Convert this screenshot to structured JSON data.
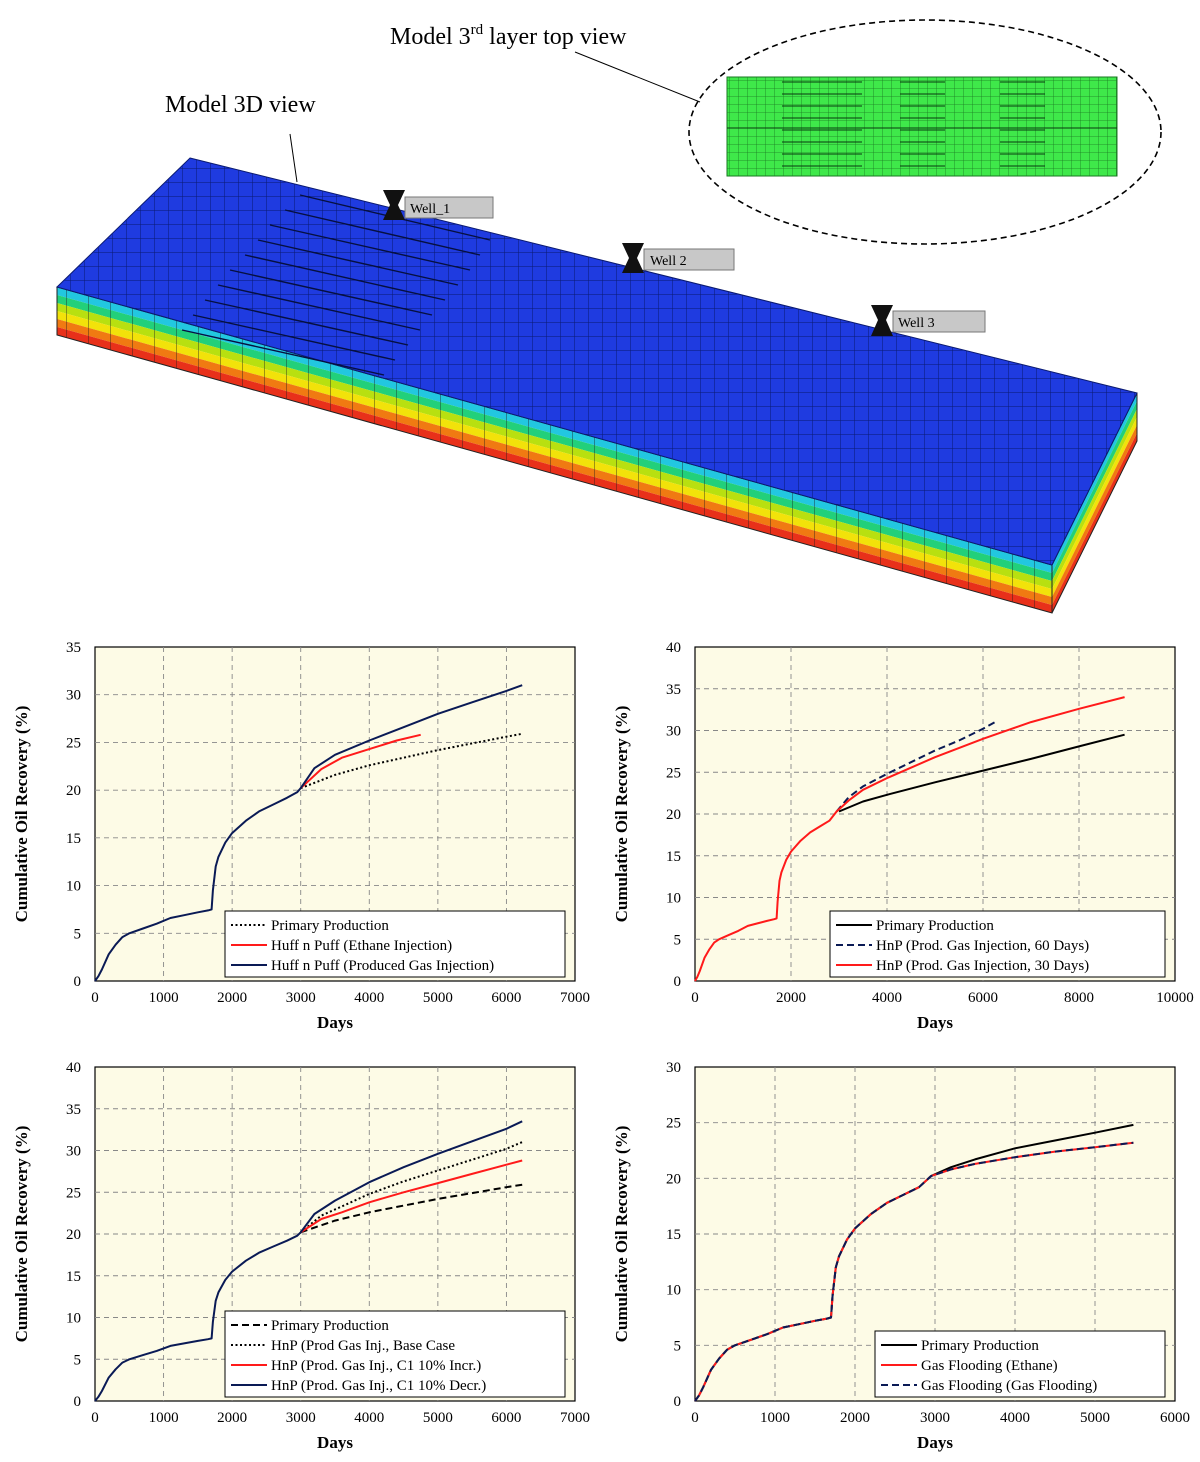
{
  "model": {
    "title_3d": "Model 3D view",
    "title_top_prefix": "Model 3",
    "title_top_sup": "rd",
    "title_top_suffix": " layer top view",
    "wells": [
      "Well_1",
      "Well 2",
      "Well 3"
    ],
    "colors": {
      "top": "#1f3be0",
      "layers": [
        "#22c7e0",
        "#22d07a",
        "#b8e010",
        "#f2e20a",
        "#f07a12",
        "#e8301a"
      ],
      "top_view": "#3fe84a"
    }
  },
  "chart_data": [
    {
      "type": "line",
      "xlabel": "Days",
      "ylabel": "Cumulative Oil Recovery (%)",
      "xlim": [
        0,
        7000
      ],
      "ylim": [
        0,
        35
      ],
      "xticks": [
        0,
        1000,
        2000,
        3000,
        4000,
        5000,
        6000,
        7000
      ],
      "yticks": [
        0,
        5,
        10,
        15,
        20,
        25,
        30,
        35
      ],
      "grid": true,
      "legend_position": "bottom-right",
      "series": [
        {
          "name": "Primary Production",
          "color": "#000000",
          "style": "dotted",
          "x": [
            3000,
            3500,
            4000,
            4500,
            5000,
            5500,
            6000,
            6230
          ],
          "y": [
            20.2,
            21.6,
            22.6,
            23.4,
            24.2,
            24.9,
            25.6,
            25.9
          ]
        },
        {
          "name": "Huff n Puff (Ethane Injection)",
          "color": "#ff1a1a",
          "style": "solid",
          "x": [
            3000,
            3300,
            3600,
            4000,
            4400,
            4750
          ],
          "y": [
            20.2,
            22.2,
            23.4,
            24.3,
            25.2,
            25.8
          ]
        },
        {
          "name": "Huff n Puff (Produced Gas Injection)",
          "color": "#0a1a55",
          "style": "solid",
          "x": [
            0,
            50,
            100,
            200,
            300,
            400,
            500,
            700,
            900,
            1100,
            1300,
            1500,
            1650,
            1700,
            1720,
            1760,
            1800,
            1900,
            2000,
            2200,
            2400,
            2600,
            2800,
            2950,
            3000,
            3200,
            3500,
            4000,
            4500,
            5000,
            5500,
            6000,
            6230
          ],
          "y": [
            0,
            0.5,
            1.2,
            2.8,
            3.8,
            4.6,
            5.0,
            5.5,
            6.0,
            6.6,
            6.9,
            7.2,
            7.4,
            7.5,
            9.5,
            12.0,
            13.0,
            14.5,
            15.5,
            16.8,
            17.8,
            18.5,
            19.2,
            19.8,
            20.2,
            22.3,
            23.7,
            25.2,
            26.6,
            28.0,
            29.2,
            30.4,
            31.0
          ]
        }
      ]
    },
    {
      "type": "line",
      "xlabel": "Days",
      "ylabel": "Cumulative Oil Recovery (%)",
      "xlim": [
        0,
        10000
      ],
      "ylim": [
        0,
        40
      ],
      "xticks": [
        0,
        2000,
        4000,
        6000,
        8000,
        10000
      ],
      "yticks": [
        0,
        5,
        10,
        15,
        20,
        25,
        30,
        35,
        40
      ],
      "grid": true,
      "legend_position": "bottom-right",
      "series": [
        {
          "name": "Primary Production",
          "color": "#000000",
          "style": "solid",
          "x": [
            3000,
            3500,
            4000,
            5000,
            6000,
            7000,
            8000,
            8950
          ],
          "y": [
            20.3,
            21.5,
            22.3,
            23.8,
            25.2,
            26.6,
            28.1,
            29.5
          ]
        },
        {
          "name": "HnP (Prod. Gas Injection, 60 Days)",
          "color": "#0a1a55",
          "style": "dashed",
          "x": [
            2950,
            3200,
            3500,
            4000,
            4500,
            5000,
            5500,
            6000,
            6250
          ],
          "y": [
            20.3,
            22.0,
            23.3,
            24.8,
            26.2,
            27.6,
            28.8,
            30.2,
            31.0
          ]
        },
        {
          "name": "HnP (Prod. Gas Injection, 30 Days)",
          "color": "#ff1a1a",
          "style": "solid",
          "x": [
            0,
            50,
            100,
            200,
            300,
            400,
            500,
            700,
            900,
            1100,
            1300,
            1500,
            1650,
            1700,
            1720,
            1760,
            1800,
            1900,
            2000,
            2200,
            2400,
            2600,
            2800,
            2950,
            3200,
            3500,
            4000,
            5000,
            6000,
            7000,
            8000,
            8950
          ],
          "y": [
            0,
            0.5,
            1.2,
            2.8,
            3.8,
            4.6,
            5.0,
            5.5,
            6.0,
            6.6,
            6.9,
            7.2,
            7.4,
            7.5,
            9.5,
            12.0,
            13.0,
            14.5,
            15.5,
            16.8,
            17.8,
            18.5,
            19.2,
            20.3,
            21.6,
            22.9,
            24.3,
            26.8,
            29.0,
            31.0,
            32.6,
            34.0
          ]
        }
      ]
    },
    {
      "type": "line",
      "xlabel": "Days",
      "ylabel": "Cumulative Oil Recovery (%)",
      "xlim": [
        0,
        7000
      ],
      "ylim": [
        0,
        40
      ],
      "xticks": [
        0,
        1000,
        2000,
        3000,
        4000,
        5000,
        6000,
        7000
      ],
      "yticks": [
        0,
        5,
        10,
        15,
        20,
        25,
        30,
        35,
        40
      ],
      "grid": true,
      "legend_position": "bottom-right",
      "series": [
        {
          "name": "Primary Production",
          "color": "#000000",
          "style": "dashed",
          "x": [
            3000,
            3500,
            4000,
            4500,
            5000,
            5500,
            6000,
            6230
          ],
          "y": [
            20.2,
            21.6,
            22.6,
            23.4,
            24.2,
            24.9,
            25.6,
            25.9
          ]
        },
        {
          "name": "HnP (Prod Gas Inj., Base Case",
          "color": "#000000",
          "style": "dotted",
          "x": [
            3000,
            3300,
            3600,
            4000,
            4500,
            5000,
            5500,
            6000,
            6230
          ],
          "y": [
            20.2,
            22.2,
            23.3,
            24.8,
            26.3,
            27.6,
            28.9,
            30.2,
            31.0
          ]
        },
        {
          "name": "HnP (Prod. Gas Inj., C1 10% Incr.)",
          "color": "#ff1a1a",
          "style": "solid",
          "x": [
            3000,
            3300,
            3600,
            4000,
            4500,
            5000,
            5500,
            6000,
            6230
          ],
          "y": [
            20.2,
            21.8,
            22.6,
            23.8,
            25.0,
            26.1,
            27.2,
            28.3,
            28.8
          ]
        },
        {
          "name": "HnP (Prod. Gas Inj., C1 10% Decr.)",
          "color": "#0a1a55",
          "style": "solid",
          "x": [
            0,
            50,
            100,
            200,
            300,
            400,
            500,
            700,
            900,
            1100,
            1300,
            1500,
            1650,
            1700,
            1720,
            1760,
            1800,
            1900,
            2000,
            2200,
            2400,
            2600,
            2800,
            2950,
            3000,
            3200,
            3500,
            4000,
            4500,
            5000,
            5500,
            6000,
            6230
          ],
          "y": [
            0,
            0.5,
            1.2,
            2.8,
            3.8,
            4.6,
            5.0,
            5.5,
            6.0,
            6.6,
            6.9,
            7.2,
            7.4,
            7.5,
            9.5,
            12.0,
            13.0,
            14.5,
            15.5,
            16.8,
            17.8,
            18.5,
            19.2,
            19.8,
            20.2,
            22.4,
            24.0,
            26.2,
            28.0,
            29.6,
            31.1,
            32.6,
            33.5
          ]
        }
      ]
    },
    {
      "type": "line",
      "xlabel": "Days",
      "ylabel": "Cumulative Oil Recovery (%)",
      "xlim": [
        0,
        6000
      ],
      "ylim": [
        0,
        30
      ],
      "xticks": [
        0,
        1000,
        2000,
        3000,
        4000,
        5000,
        6000
      ],
      "yticks": [
        0,
        5,
        10,
        15,
        20,
        25,
        30
      ],
      "grid": true,
      "legend_position": "bottom-right",
      "series": [
        {
          "name": "Primary Production",
          "color": "#000000",
          "style": "solid",
          "x": [
            0,
            50,
            100,
            200,
            300,
            400,
            500,
            700,
            900,
            1100,
            1300,
            1500,
            1650,
            1700,
            1720,
            1760,
            1800,
            1900,
            2000,
            2200,
            2400,
            2600,
            2800,
            2950,
            3200,
            3500,
            4000,
            4500,
            5000,
            5480
          ],
          "y": [
            0,
            0.5,
            1.2,
            2.8,
            3.8,
            4.6,
            5.0,
            5.5,
            6.0,
            6.6,
            6.9,
            7.2,
            7.4,
            7.5,
            9.5,
            12.0,
            13.0,
            14.5,
            15.5,
            16.8,
            17.8,
            18.5,
            19.2,
            20.2,
            21.0,
            21.7,
            22.7,
            23.4,
            24.1,
            24.8
          ]
        },
        {
          "name": "Gas Flooding (Ethane)",
          "color": "#ff1a1a",
          "style": "solid",
          "x": [
            0,
            50,
            100,
            200,
            300,
            400,
            500,
            700,
            900,
            1100,
            1300,
            1500,
            1650,
            1700,
            1720,
            1760,
            1800,
            1900,
            2000,
            2200,
            2400,
            2600,
            2800,
            2950,
            3200,
            3500,
            4000,
            4500,
            5000,
            5480
          ],
          "y": [
            0,
            0.5,
            1.2,
            2.8,
            3.8,
            4.6,
            5.0,
            5.5,
            6.0,
            6.6,
            6.9,
            7.2,
            7.4,
            7.5,
            9.5,
            12.0,
            13.0,
            14.5,
            15.5,
            16.8,
            17.8,
            18.5,
            19.2,
            20.2,
            20.8,
            21.3,
            21.9,
            22.4,
            22.8,
            23.2
          ]
        },
        {
          "name": "Gas Flooding (Gas Flooding)",
          "color": "#0a1a55",
          "style": "dashed",
          "x": [
            0,
            50,
            100,
            200,
            300,
            400,
            500,
            700,
            900,
            1100,
            1300,
            1500,
            1650,
            1700,
            1720,
            1760,
            1800,
            1900,
            2000,
            2200,
            2400,
            2600,
            2800,
            2950,
            3200,
            3500,
            4000,
            4500,
            5000,
            5480
          ],
          "y": [
            0,
            0.5,
            1.2,
            2.8,
            3.8,
            4.6,
            5.0,
            5.5,
            6.0,
            6.6,
            6.9,
            7.2,
            7.4,
            7.5,
            9.5,
            12.0,
            13.0,
            14.5,
            15.5,
            16.8,
            17.8,
            18.5,
            19.2,
            20.2,
            20.8,
            21.3,
            21.9,
            22.4,
            22.8,
            23.2
          ]
        }
      ]
    }
  ]
}
